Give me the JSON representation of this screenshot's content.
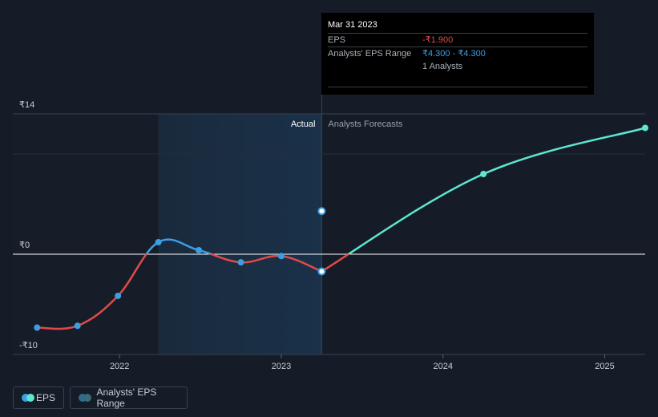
{
  "tooltip": {
    "date": "Mar 31 2023",
    "eps_label": "EPS",
    "eps_value": "-₹1.900",
    "range_label": "Analysts' EPS Range",
    "range_low": "₹4.300",
    "range_sep": " - ",
    "range_high": "₹4.300",
    "analysts": "1 Analysts"
  },
  "legend": {
    "eps": "EPS",
    "range": "Analysts' EPS Range"
  },
  "colors": {
    "background": "#151b27",
    "eps_actual_positive": "#3c9ee5",
    "eps_negative": "#e04a4a",
    "forecast": "#5ee6d0",
    "actual_shade": "#1a3149"
  },
  "chart_data": {
    "type": "line",
    "y_tick_labels": [
      {
        "value": 14,
        "label": "₹14"
      },
      {
        "value": 0,
        "label": "₹0"
      },
      {
        "value": -10,
        "label": "-₹10"
      }
    ],
    "x_tick_labels": [
      {
        "value": 2022,
        "label": "2022"
      },
      {
        "value": 2023,
        "label": "2023"
      },
      {
        "value": 2024,
        "label": "2024"
      },
      {
        "value": 2025,
        "label": "2025"
      }
    ],
    "ylim": [
      -10,
      14
    ],
    "xlim": [
      2021.34,
      2025.25
    ],
    "section_labels": {
      "actual": "Actual",
      "forecast": "Analysts Forecasts"
    },
    "actual_region_start": 2022.24,
    "divider_x": 2023.25,
    "series": [
      {
        "name": "EPS",
        "kind": "actual",
        "points": [
          {
            "x": 2021.49,
            "y": -8.1
          },
          {
            "x": 2021.74,
            "y": -7.9
          },
          {
            "x": 2021.99,
            "y": -4.6
          },
          {
            "x": 2022.24,
            "y": 1.2
          },
          {
            "x": 2022.49,
            "y": 0.4
          },
          {
            "x": 2022.75,
            "y": -0.9
          },
          {
            "x": 2023.0,
            "y": -0.2
          },
          {
            "x": 2023.25,
            "y": -1.9
          }
        ]
      },
      {
        "name": "Analysts' EPS Range",
        "kind": "forecast",
        "points": [
          {
            "x": 2023.25,
            "y": -1.9
          },
          {
            "x": 2024.25,
            "y": 8.0
          },
          {
            "x": 2025.25,
            "y": 12.6
          }
        ]
      }
    ],
    "range_points": [
      {
        "x": 2023.25,
        "low": 4.3,
        "high": 4.3
      }
    ]
  }
}
